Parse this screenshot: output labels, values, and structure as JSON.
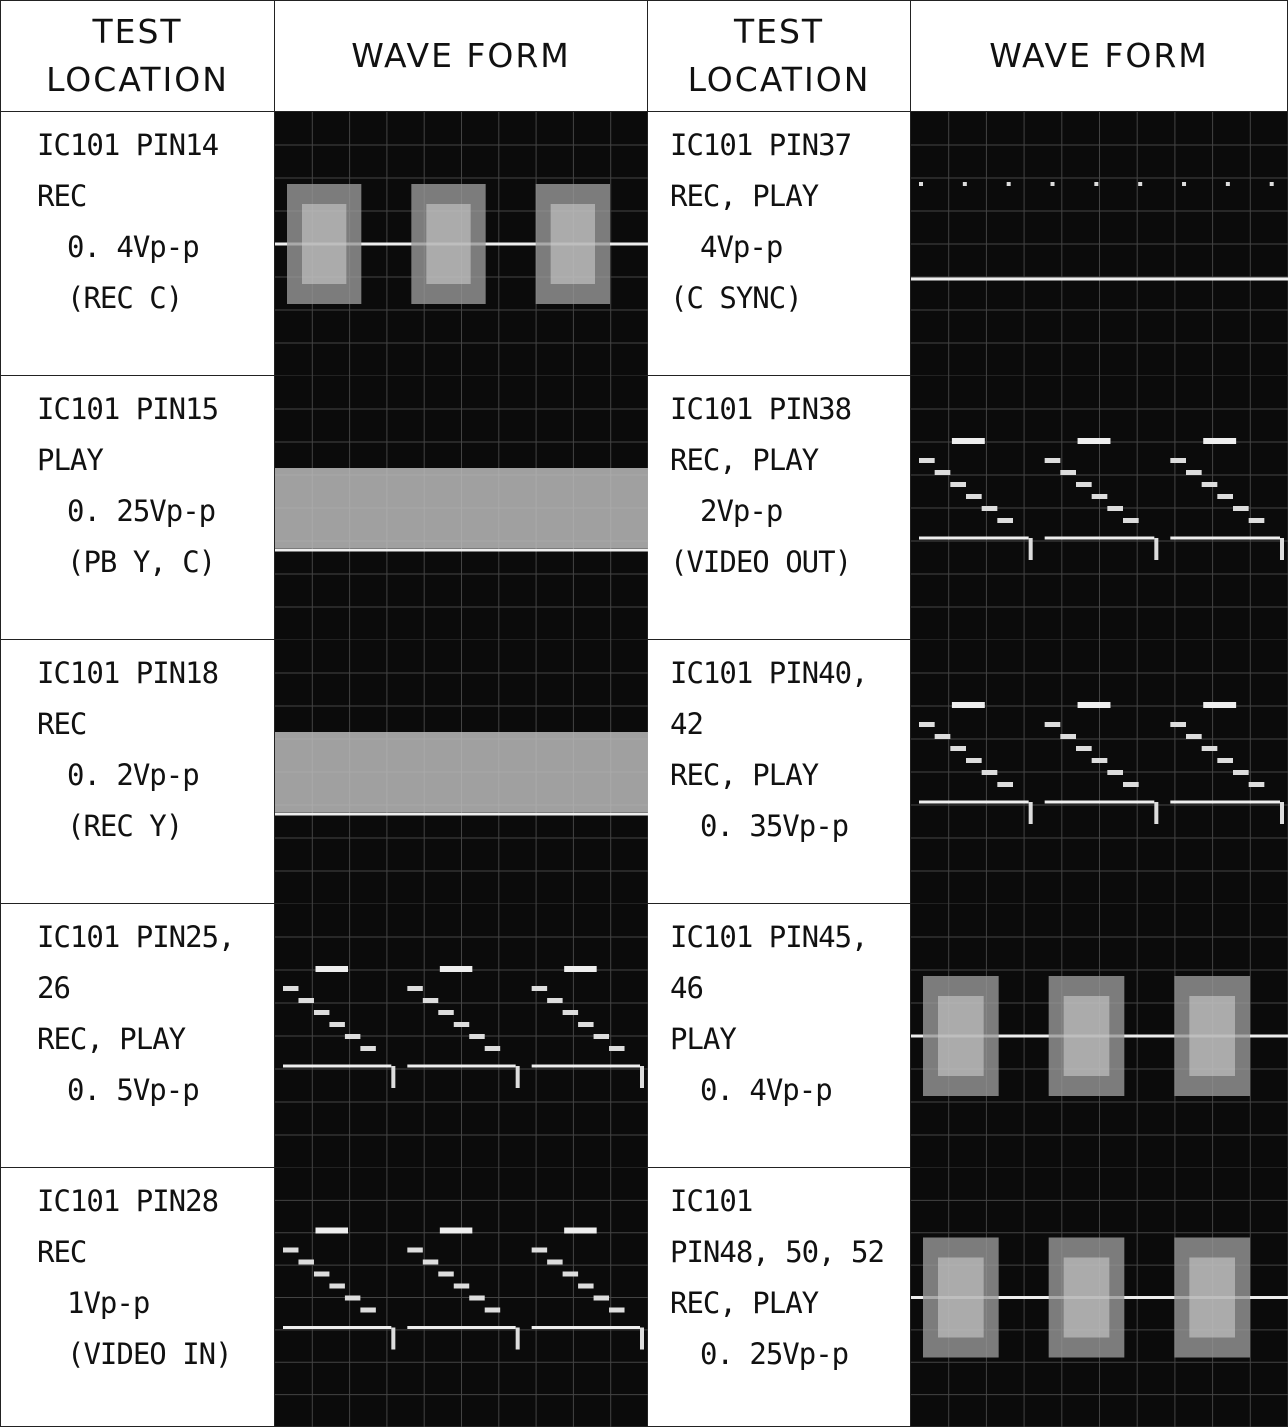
{
  "header": {
    "columns": [
      {
        "lines": [
          "TEST",
          "LOCATION"
        ]
      },
      {
        "lines": [
          "WAVE FORM"
        ]
      },
      {
        "lines": [
          "TEST",
          "LOCATION"
        ]
      },
      {
        "lines": [
          "WAVE FORM"
        ]
      }
    ]
  },
  "rows": [
    {
      "left": [
        "IC101 PIN14",
        "REC",
        "0. 4Vp-p",
        "(REC C)"
      ],
      "right": [
        "IC101 PIN37",
        "REC, PLAY",
        "4Vp-p",
        "(C SYNC)"
      ]
    },
    {
      "left": [
        "IC101 PIN15",
        "PLAY",
        "0. 25Vp-p",
        "(PB Y, C)"
      ],
      "right": [
        "IC101 PIN38",
        "REC, PLAY",
        "2Vp-p",
        "(VIDEO OUT)"
      ]
    },
    {
      "left": [
        "IC101 PIN18",
        "REC",
        "0. 2Vp-p",
        "(REC Y)"
      ],
      "right": [
        "IC101 PIN40, 42",
        "REC, PLAY",
        "0. 35Vp-p"
      ]
    },
    {
      "left": [
        "IC101 PIN25, 26",
        "REC, PLAY",
        "0. 5Vp-p"
      ],
      "right": [
        "IC101 PIN45, 46",
        "PLAY",
        "0. 4Vp-p"
      ]
    },
    {
      "left": [
        "IC101 PIN28",
        "REC",
        "1Vp-p",
        "(VIDEO IN)"
      ],
      "right": [
        "IC101",
        "PIN48, 50, 52",
        "REC, PLAY",
        "0. 25Vp-p"
      ]
    }
  ]
}
